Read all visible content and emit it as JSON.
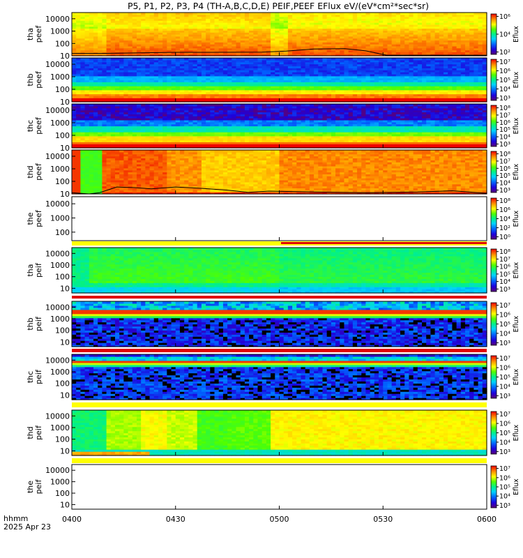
{
  "title": "P5, P1, P2, P3, P4 (TH-A,B,C,D,E) PEIF,PEEF EFlux eV/(eV*cm²*sec*sr)",
  "footer": {
    "line1": "hhmm",
    "line2": "2025 Apr 23"
  },
  "colors": {
    "frame": "#000000",
    "background": "#ffffff",
    "nodata_bar_yellow": "#ffff00",
    "nodata_bar_red": "#e00000"
  },
  "chart_data": [
    {
      "type": "heatmap",
      "ylabel": [
        "tha",
        "peef"
      ],
      "colorbar_label": "Eflux",
      "colorbar_ticks": [
        "10²",
        "10⁴",
        "10⁶"
      ],
      "colorbar_log_range": [
        1,
        6.3
      ],
      "yticks": [
        "10",
        "100",
        "1000",
        "10000"
      ],
      "ylog_range": [
        1,
        4.5
      ],
      "xlim": [
        "0400",
        "0600"
      ],
      "pattern": "tha_e",
      "has_overlay_line": true,
      "overlay_log10": [
        [
          0,
          1.2
        ],
        [
          10,
          1.2
        ],
        [
          30,
          1.28
        ],
        [
          40,
          1.28
        ],
        [
          55,
          1.3
        ],
        [
          62,
          1.38
        ],
        [
          70,
          1.55
        ],
        [
          79,
          1.58
        ],
        [
          85,
          1.4
        ],
        [
          91,
          1.05
        ],
        [
          120,
          1.05
        ]
      ]
    },
    {
      "type": "heatmap",
      "ylabel": [
        "thb",
        "peef"
      ],
      "colorbar_label": "Eflux",
      "colorbar_ticks": [
        "10³",
        "10⁴",
        "10⁵",
        "10⁶",
        "10⁷"
      ],
      "colorbar_log_range": [
        2.5,
        7.5
      ],
      "yticks": [
        "10",
        "100",
        "1000",
        "10000"
      ],
      "ylog_range": [
        1,
        4.5
      ],
      "xlim": [
        "0400",
        "0600"
      ],
      "pattern": "thb_e"
    },
    {
      "type": "heatmap",
      "ylabel": [
        "thc",
        "peef"
      ],
      "colorbar_label": "Eflux",
      "colorbar_ticks": [
        "10³",
        "10⁴",
        "10⁵",
        "10⁶",
        "10⁷",
        "10⁸"
      ],
      "colorbar_log_range": [
        2.5,
        8.5
      ],
      "yticks": [
        "10",
        "100",
        "1000",
        "10000"
      ],
      "ylog_range": [
        1,
        4.5
      ],
      "xlim": [
        "0400",
        "0600"
      ],
      "pattern": "thc_e"
    },
    {
      "type": "heatmap",
      "ylabel": [
        "thd",
        "peef"
      ],
      "colorbar_label": "Eflux",
      "colorbar_ticks": [
        "10³",
        "10⁴",
        "10⁵",
        "10⁶",
        "10⁷",
        "10⁸"
      ],
      "colorbar_log_range": [
        2.5,
        8.5
      ],
      "yticks": [
        "10",
        "100",
        "1000",
        "10000"
      ],
      "ylog_range": [
        1,
        4.5
      ],
      "xlim": [
        "0400",
        "0600"
      ],
      "pattern": "thd_e",
      "has_overlay_line": true,
      "overlay_log10": [
        [
          0,
          1.1
        ],
        [
          5,
          1.0
        ],
        [
          8,
          1.1
        ],
        [
          13,
          1.55
        ],
        [
          18,
          1.5
        ],
        [
          23,
          1.4
        ],
        [
          30,
          1.55
        ],
        [
          37,
          1.45
        ],
        [
          45,
          1.3
        ],
        [
          51,
          1.12
        ],
        [
          57,
          1.22
        ],
        [
          70,
          1.15
        ],
        [
          85,
          1.1
        ],
        [
          100,
          1.15
        ],
        [
          110,
          1.25
        ],
        [
          120,
          1.05
        ]
      ]
    },
    {
      "type": "heatmap",
      "ylabel": [
        "the",
        "peef"
      ],
      "colorbar_label": "Eflux",
      "colorbar_ticks": [
        "10⁰",
        "10²",
        "10⁴",
        "10⁶",
        "10⁸"
      ],
      "colorbar_log_range": [
        0,
        9
      ],
      "yticks": [
        "100",
        "1000",
        "10000"
      ],
      "ylog_range": [
        1.4,
        4.5
      ],
      "xlim": [
        "0400",
        "0600"
      ],
      "pattern": "empty"
    },
    {
      "type": "heatmap",
      "ylabel": [
        "tha",
        "peif"
      ],
      "colorbar_label": "Eflux",
      "colorbar_ticks": [
        "10³",
        "10⁴",
        "10⁵",
        "10⁶",
        "10⁷",
        "10⁸"
      ],
      "colorbar_log_range": [
        2.5,
        8.5
      ],
      "yticks": [
        "10",
        "100",
        "1000",
        "10000"
      ],
      "ylog_range": [
        0.6,
        4.5
      ],
      "xlim": [
        "0400",
        "0600"
      ],
      "pattern": "tha_i"
    },
    {
      "type": "heatmap",
      "ylabel": [
        "thb",
        "peif"
      ],
      "colorbar_label": "Eflux",
      "colorbar_ticks": [
        "10³",
        "10⁴",
        "10⁵",
        "10⁶",
        "10⁷"
      ],
      "colorbar_log_range": [
        2.5,
        7.5
      ],
      "yticks": [
        "10",
        "100",
        "1000",
        "10000"
      ],
      "ylog_range": [
        0.6,
        4.5
      ],
      "xlim": [
        "0400",
        "0600"
      ],
      "pattern": "thb_i"
    },
    {
      "type": "heatmap",
      "ylabel": [
        "thc",
        "peif"
      ],
      "colorbar_label": "Eflux",
      "colorbar_ticks": [
        "10³",
        "10⁴",
        "10⁵",
        "10⁶",
        "10⁷"
      ],
      "colorbar_log_range": [
        2.5,
        7.5
      ],
      "yticks": [
        "10",
        "100",
        "1000",
        "10000"
      ],
      "ylog_range": [
        0.6,
        4.5
      ],
      "xlim": [
        "0400",
        "0600"
      ],
      "pattern": "thc_i"
    },
    {
      "type": "heatmap",
      "ylabel": [
        "thd",
        "peif"
      ],
      "colorbar_label": "Eflux",
      "colorbar_ticks": [
        "10³",
        "10⁴",
        "10⁵",
        "10⁶",
        "10⁷"
      ],
      "colorbar_log_range": [
        2.5,
        7.5
      ],
      "yticks": [
        "10",
        "100",
        "1000",
        "10000"
      ],
      "ylog_range": [
        0.6,
        4.5
      ],
      "xlim": [
        "0400",
        "0600"
      ],
      "pattern": "thd_i"
    },
    {
      "type": "heatmap",
      "ylabel": [
        "the",
        "peif"
      ],
      "colorbar_label": "Eflux",
      "colorbar_ticks": [
        "10³",
        "10⁴",
        "10⁵",
        "10⁶",
        "10⁷"
      ],
      "colorbar_log_range": [
        2.5,
        7.5
      ],
      "yticks": [
        "10",
        "100",
        "1000",
        "10000"
      ],
      "ylog_range": [
        0.6,
        4.5
      ],
      "xlim": [
        "0400",
        "0600"
      ],
      "pattern": "empty"
    }
  ],
  "xaxis": {
    "ticks": [
      "0400",
      "0430",
      "0500",
      "0530",
      "0600"
    ],
    "tick_minutes": [
      0,
      30,
      60,
      90,
      120
    ],
    "range_minutes": [
      0,
      120
    ]
  }
}
